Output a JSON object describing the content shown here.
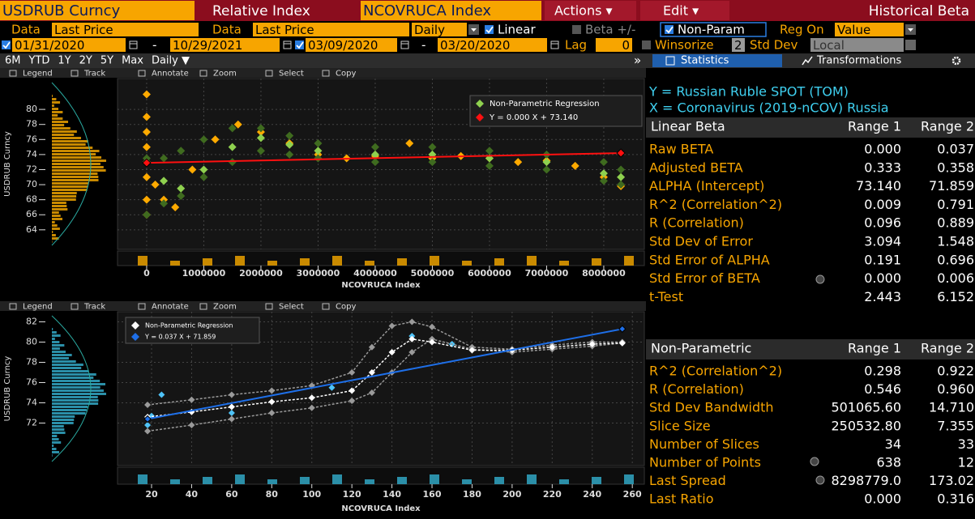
{
  "header": {
    "security": "USDRUB Curncy",
    "mode": "Relative Index",
    "index": "NCOVRUCA Index",
    "actions": "Actions ▾",
    "edit": "Edit ▾",
    "function": "Historical Beta"
  },
  "settings": {
    "data_label": "Data",
    "y_field": "Last Price",
    "x_field": "Last Price",
    "periodicity": "Daily",
    "linear": "Linear",
    "beta_band": "Beta +/-",
    "non_param": "Non-Param",
    "reg_on_label": "Reg On",
    "reg_on": "Value",
    "range1_start": "01/31/2020",
    "range1_end": "10/29/2021",
    "range2_start": "03/09/2020",
    "range2_end": "03/20/2020",
    "range_separator": "-",
    "lag_label": "Lag",
    "lag": "0",
    "winsorize": "Winsorize",
    "winsorize_value": "2",
    "std_dev_label": "Std Dev",
    "std_dev": "Local"
  },
  "periods": [
    "6M",
    "YTD",
    "1Y",
    "2Y",
    "5Y",
    "Max",
    "Daily ▼"
  ],
  "collapse": "»",
  "tabs": [
    "Statistics",
    "Transformations"
  ],
  "chart_toolbar": [
    "Legend",
    "Track",
    "Annotate",
    "Zoom",
    "Select",
    "Copy"
  ],
  "chart_data": [
    {
      "type": "scatter",
      "y_label": "USDRUB Curncy",
      "x_label": "NCOVRUCA Index",
      "xlim": [
        -510000,
        8710000
      ],
      "xticks": [
        0,
        1000000,
        2000000,
        3000000,
        4000000,
        5000000,
        6000000,
        7000000,
        8000000
      ],
      "ylim": [
        61.4,
        84.1
      ],
      "yticks": [
        64,
        66,
        68,
        70,
        72,
        74,
        76,
        78,
        80
      ],
      "grid": true,
      "series": [
        {
          "color": "#ffaa00",
          "line": false,
          "x": [
            0,
            0,
            0,
            0,
            0,
            0,
            0,
            0,
            150000,
            300000,
            500000,
            800000,
            1200000,
            1600000,
            2000000,
            2500000,
            3000000,
            3500000,
            4000000,
            4600000,
            5000000,
            5500000,
            6000000,
            6500000,
            7000000,
            7500000,
            8000000,
            8300000
          ],
          "values": [
            82,
            79,
            77,
            75,
            73,
            71,
            68,
            66,
            70,
            68,
            67,
            72,
            76,
            78,
            77,
            75.5,
            74,
            73.5,
            73.8,
            75.5,
            73.5,
            73.8,
            73.5,
            73,
            73.2,
            72.5,
            71,
            69.8
          ]
        },
        {
          "color": "#3f6b1f",
          "line": false,
          "x": [
            0,
            300000,
            600000,
            1000000,
            1500000,
            2000000,
            2500000,
            3000000,
            4000000,
            5000000,
            6000000,
            7000000,
            8000000,
            8300000
          ],
          "values": [
            73.5,
            73.5,
            74.5,
            76,
            77.5,
            77.5,
            76.5,
            75.5,
            75,
            75,
            74.5,
            74,
            73,
            72
          ]
        },
        {
          "color": "#3f6b1f",
          "line": false,
          "x": [
            0,
            300000,
            600000,
            1000000,
            1500000,
            2000000,
            2500000,
            3000000,
            4000000,
            5000000,
            6000000,
            7000000,
            8000000,
            8300000
          ],
          "values": [
            66,
            67.5,
            68.5,
            71,
            73,
            74.5,
            74,
            73.5,
            73,
            73,
            72.5,
            72,
            70.5,
            70
          ]
        },
        {
          "name": "Non-Parametric Regression",
          "color": "#8fd14f",
          "line": false,
          "x": [
            0,
            300000,
            600000,
            1000000,
            1500000,
            2000000,
            2500000,
            3000000,
            4000000,
            5000000,
            6000000,
            7000000,
            8000000,
            8300000
          ],
          "values": [
            73,
            70.5,
            69.5,
            72,
            75,
            76.2,
            75.3,
            74.5,
            74,
            74,
            73.5,
            73,
            71.5,
            71
          ]
        },
        {
          "name": "Y = 0.000 X + 73.140",
          "color": "#ff1010",
          "line": true,
          "x": [
            0,
            8300000
          ],
          "values": [
            72.9,
            74.2
          ]
        }
      ]
    },
    {
      "type": "scatter",
      "y_label": "USDRUB Curncy",
      "x_label": "NCOVRUCA Index",
      "xlim": [
        3,
        266
      ],
      "xticks": [
        20,
        40,
        60,
        80,
        100,
        120,
        140,
        160,
        180,
        200,
        220,
        240,
        260
      ],
      "ylim": [
        67.8,
        83
      ],
      "yticks": [
        72,
        74,
        76,
        78,
        80,
        82
      ],
      "grid": true,
      "series": [
        {
          "color": "#4fc3f7",
          "line": false,
          "x": [
            18,
            20,
            25,
            60,
            110,
            150,
            170
          ],
          "values": [
            71.8,
            72.7,
            74.8,
            73,
            75.5,
            80.6,
            79.8
          ]
        },
        {
          "color": "#9a9a9a",
          "line": true,
          "x": [
            18,
            40,
            60,
            80,
            100,
            120,
            130,
            140,
            150,
            160,
            180,
            200,
            220,
            240,
            255
          ],
          "values": [
            73.8,
            74.3,
            74.8,
            75.2,
            75.7,
            77,
            79.5,
            81.6,
            82,
            81.5,
            79.5,
            79.3,
            79.7,
            80,
            80
          ]
        },
        {
          "color": "#9a9a9a",
          "line": true,
          "x": [
            18,
            40,
            60,
            80,
            100,
            120,
            130,
            140,
            150,
            160,
            180,
            200,
            220,
            240,
            255
          ],
          "values": [
            71.2,
            71.8,
            72.4,
            73,
            73.5,
            74.2,
            75,
            77,
            79,
            80.3,
            79.3,
            79,
            79.3,
            79.6,
            79.9
          ]
        },
        {
          "name": "Non-Parametric Regression",
          "color": "#ffffff",
          "line": true,
          "x": [
            18,
            40,
            60,
            80,
            100,
            120,
            130,
            140,
            150,
            160,
            180,
            200,
            220,
            240,
            255
          ],
          "values": [
            72.6,
            73.1,
            73.6,
            74.1,
            74.5,
            75.2,
            77,
            79,
            80.3,
            80,
            79.2,
            79.2,
            79.5,
            79.8,
            79.9
          ]
        },
        {
          "name": "Y = 0.037 X + 71.859",
          "color": "#1e6fe8",
          "line": true,
          "x": [
            18,
            255
          ],
          "values": [
            72.4,
            81.3
          ]
        }
      ]
    }
  ],
  "stats": {
    "y_desc": "Y = Russian Ruble SPOT (TOM)",
    "x_desc": "X = Coronavirus (2019-nCOV) Russia",
    "linear": {
      "title": "Linear Beta",
      "columns": [
        "Range 1",
        "Range 2"
      ],
      "rows": [
        [
          "Raw BETA",
          "0.000",
          "0.037"
        ],
        [
          "Adjusted BETA",
          "0.333",
          "0.358"
        ],
        [
          "ALPHA (Intercept)",
          "73.140",
          "71.859"
        ],
        [
          "R^2 (Correlation^2)",
          "0.009",
          "0.791"
        ],
        [
          "R (Correlation)",
          "0.096",
          "0.889"
        ],
        [
          "Std Dev of Error",
          "3.094",
          "1.548"
        ],
        [
          "Std Error of ALPHA",
          "0.191",
          "0.696"
        ],
        [
          "Std Error of BETA",
          "0.000",
          "0.006"
        ],
        [
          "t-Test",
          "2.443",
          "6.152"
        ]
      ]
    },
    "nonparam": {
      "title": "Non-Parametric",
      "columns": [
        "Range 1",
        "Range 2"
      ],
      "rows": [
        [
          "R^2 (Correlation^2)",
          "0.298",
          "0.922"
        ],
        [
          "R (Correlation)",
          "0.546",
          "0.960"
        ],
        [
          "Std Dev Bandwidth",
          "501065.60",
          "14.710"
        ],
        [
          "Slice Size",
          "250532.80",
          "7.355"
        ],
        [
          "Number of Slices",
          "34",
          "33"
        ],
        [
          "Number of Points",
          "638",
          "12"
        ],
        [
          "Last Spread",
          "8298779.0",
          "173.02"
        ],
        [
          "Last Ratio",
          "0.000",
          "0.316"
        ]
      ]
    }
  }
}
